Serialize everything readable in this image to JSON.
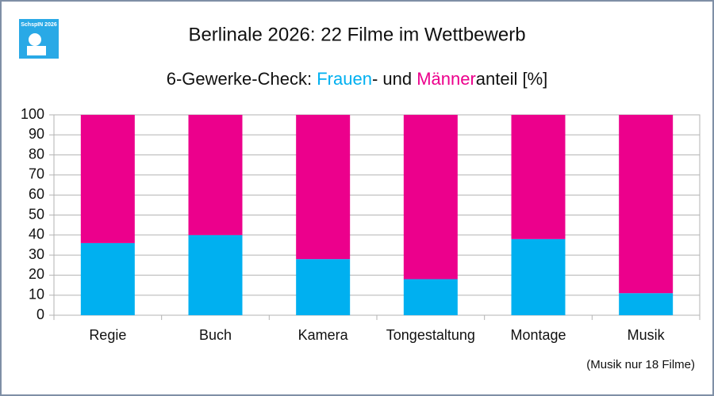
{
  "logo": "SchspIN 2026",
  "chart_data": {
    "type": "stacked-bar",
    "title": "Berlinale 2026: 22 Filme im Wettbewerb",
    "subtitle_parts": [
      "6-Gewerke-Check: ",
      "- und ",
      "anteil [%]"
    ],
    "note": "(Musik nur 18 Filme)",
    "categories": [
      "Regie",
      "Buch",
      "Kamera",
      "Tongestaltung",
      "Montage",
      "Musik"
    ],
    "series": [
      {
        "name": "Frauen",
        "color": "#00b0f0",
        "values": [
          36,
          40,
          28,
          18,
          38,
          11
        ]
      },
      {
        "name": "Männer",
        "color": "#ec008c",
        "values": [
          64,
          60,
          72,
          82,
          62,
          89
        ]
      }
    ],
    "ylim": [
      0,
      100
    ],
    "yticks": [
      0,
      10,
      20,
      30,
      40,
      50,
      60,
      70,
      80,
      90,
      100
    ],
    "grid": true
  }
}
